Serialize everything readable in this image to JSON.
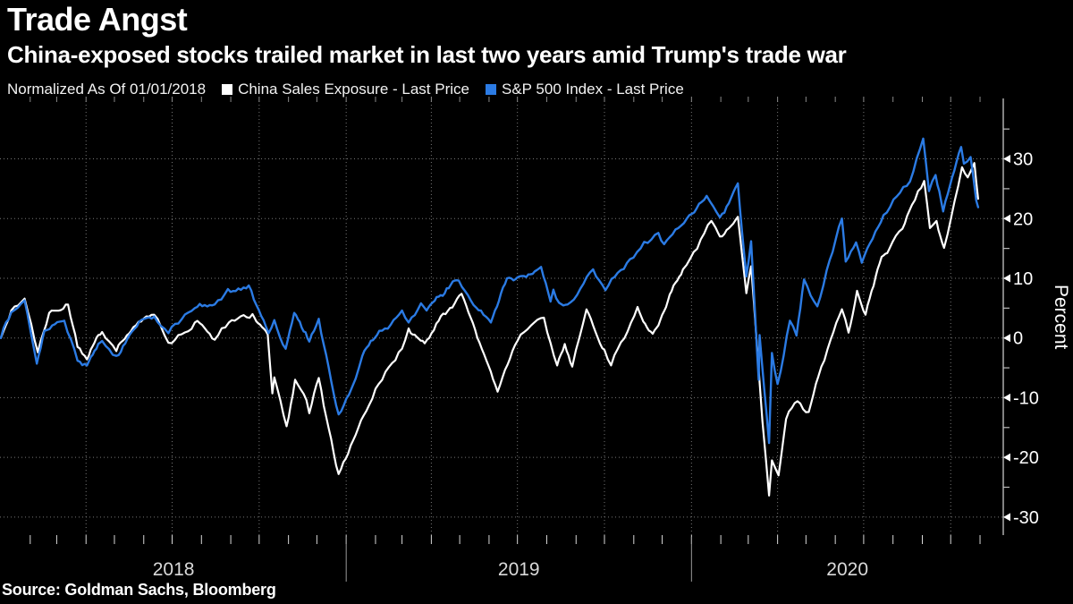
{
  "header": {
    "title": "Trade Angst",
    "subtitle": "China-exposed stocks trailed market in last two years amid Trump's trade war"
  },
  "legend": {
    "normalized_label": "Normalized As Of 01/01/2018",
    "items": [
      {
        "label": "China Sales Exposure - Last Price",
        "color": "#ffffff"
      },
      {
        "label": "S&P 500 Index - Last Price",
        "color": "#2b7be4"
      }
    ]
  },
  "source": "Source: Goldman Sachs, Bloomberg",
  "colors": {
    "background": "#000000",
    "axis_line": "#c8c8c8",
    "grid_dots": "#777777",
    "tick_minor": "#bbbbbb",
    "tick_month_top": "#8a8a8a",
    "tick_month_bottom": "#d8d8d8",
    "year_divider": "#9a9a9a",
    "year_label": "#d9d9d9",
    "ytick_label": "#ffffff",
    "white_series": "#ffffff",
    "blue_series": "#2b7be4"
  },
  "chart_data": {
    "type": "line",
    "title": "Trade Angst",
    "subtitle": "China-exposed stocks trailed market in last two years amid Trump's trade war",
    "xlabel": "",
    "ylabel": "Percent",
    "ylim": [
      -35,
      35
    ],
    "yticks": [
      30,
      20,
      10,
      0,
      -10,
      -20,
      -30
    ],
    "ytick_minor_step": 5,
    "x_range": [
      "2018-01-01",
      "2020-10-30"
    ],
    "x_year_labels": [
      "2018",
      "2019",
      "2020"
    ],
    "grid": "dotted horizontal lines every 10 percent; dotted vertical lines at quarter starts; monthly tick marks top and bottom; year divider lines below axis",
    "legend_position": "top",
    "normalized_as_of": "01/01/2018",
    "series": [
      {
        "name": "China Sales Exposure - Last Price",
        "color": "#ffffff",
        "points": [
          [
            "2018-01-01",
            0
          ],
          [
            "2018-01-12",
            4.6
          ],
          [
            "2018-01-26",
            6.6
          ],
          [
            "2018-02-09",
            -2.4
          ],
          [
            "2018-02-21",
            4.2
          ],
          [
            "2018-03-13",
            5.6
          ],
          [
            "2018-03-23",
            -1.5
          ],
          [
            "2018-04-02",
            -3.6
          ],
          [
            "2018-04-18",
            1.0
          ],
          [
            "2018-05-03",
            -2.2
          ],
          [
            "2018-05-21",
            1.8
          ],
          [
            "2018-06-12",
            3.9
          ],
          [
            "2018-06-27",
            -0.8
          ],
          [
            "2018-07-25",
            2.6
          ],
          [
            "2018-08-15",
            -0.3
          ],
          [
            "2018-08-30",
            2.6
          ],
          [
            "2018-09-24",
            4.0
          ],
          [
            "2018-10-10",
            0.6
          ],
          [
            "2018-10-15",
            -9.3
          ],
          [
            "2018-10-17",
            -6.6
          ],
          [
            "2018-10-30",
            -14.8
          ],
          [
            "2018-11-08",
            -7.0
          ],
          [
            "2018-11-20",
            -10.4
          ],
          [
            "2018-11-23",
            -12.6
          ],
          [
            "2018-12-03",
            -6.7
          ],
          [
            "2018-12-24",
            -22.8
          ],
          [
            "2019-01-03",
            -19.4
          ],
          [
            "2019-01-25",
            -11.3
          ],
          [
            "2019-02-01",
            -8.5
          ],
          [
            "2019-03-01",
            -1.8
          ],
          [
            "2019-03-08",
            1.6
          ],
          [
            "2019-03-25",
            -0.9
          ],
          [
            "2019-05-03",
            7.4
          ],
          [
            "2019-05-22",
            -0.8
          ],
          [
            "2019-06-10",
            -9.0
          ],
          [
            "2019-07-01",
            -0.5
          ],
          [
            "2019-07-29",
            3.4
          ],
          [
            "2019-08-12",
            -4.6
          ],
          [
            "2019-08-20",
            -1.0
          ],
          [
            "2019-08-28",
            -4.8
          ],
          [
            "2019-09-12",
            4.8
          ],
          [
            "2019-10-01",
            -2.0
          ],
          [
            "2019-10-08",
            -4.6
          ],
          [
            "2019-11-05",
            5.2
          ],
          [
            "2019-11-21",
            0.7
          ],
          [
            "2019-12-23",
            11.5
          ],
          [
            "2020-01-22",
            19.6
          ],
          [
            "2020-01-31",
            17.0
          ],
          [
            "2020-02-19",
            20.3
          ],
          [
            "2020-02-28",
            7.5
          ],
          [
            "2020-03-04",
            12.0
          ],
          [
            "2020-03-16",
            -14.0
          ],
          [
            "2020-03-23",
            -26.4
          ],
          [
            "2020-03-26",
            -20.5
          ],
          [
            "2020-04-02",
            -23.0
          ],
          [
            "2020-04-10",
            -13.6
          ],
          [
            "2020-04-22",
            -10.6
          ],
          [
            "2020-05-04",
            -12.4
          ],
          [
            "2020-05-14",
            -6.5
          ],
          [
            "2020-05-27",
            -0.3
          ],
          [
            "2020-06-08",
            4.8
          ],
          [
            "2020-06-15",
            0.9
          ],
          [
            "2020-06-24",
            7.9
          ],
          [
            "2020-07-03",
            3.9
          ],
          [
            "2020-07-20",
            13.6
          ],
          [
            "2020-07-28",
            14.9
          ],
          [
            "2020-08-11",
            18.3
          ],
          [
            "2020-08-21",
            22.3
          ],
          [
            "2020-09-03",
            26.3
          ],
          [
            "2020-09-09",
            18.4
          ],
          [
            "2020-09-16",
            19.6
          ],
          [
            "2020-09-24",
            15.1
          ],
          [
            "2020-10-09",
            25.5
          ],
          [
            "2020-10-13",
            28.6
          ],
          [
            "2020-10-19",
            26.9
          ],
          [
            "2020-10-26",
            29.3
          ],
          [
            "2020-10-30",
            23.3
          ]
        ]
      },
      {
        "name": "S&P 500 Index - Last Price",
        "color": "#2b7be4",
        "points": [
          [
            "2018-01-01",
            0
          ],
          [
            "2018-01-12",
            4.3
          ],
          [
            "2018-01-26",
            6.3
          ],
          [
            "2018-02-08",
            -4.3
          ],
          [
            "2018-02-16",
            1.2
          ],
          [
            "2018-02-27",
            2.3
          ],
          [
            "2018-03-09",
            2.9
          ],
          [
            "2018-03-23",
            -3.8
          ],
          [
            "2018-04-02",
            -4.6
          ],
          [
            "2018-04-18",
            -0.5
          ],
          [
            "2018-05-03",
            -3.0
          ],
          [
            "2018-05-22",
            1.5
          ],
          [
            "2018-06-12",
            3.6
          ],
          [
            "2018-06-27",
            0.8
          ],
          [
            "2018-07-25",
            5.0
          ],
          [
            "2018-08-15",
            5.6
          ],
          [
            "2018-08-29",
            8.2
          ],
          [
            "2018-09-20",
            8.8
          ],
          [
            "2018-10-11",
            0.8
          ],
          [
            "2018-10-17",
            3.0
          ],
          [
            "2018-10-29",
            -1.8
          ],
          [
            "2018-11-07",
            4.2
          ],
          [
            "2018-11-23",
            -0.6
          ],
          [
            "2018-12-03",
            3.2
          ],
          [
            "2018-12-24",
            -12.8
          ],
          [
            "2019-01-04",
            -9.5
          ],
          [
            "2019-01-18",
            -3.0
          ],
          [
            "2019-02-05",
            1.2
          ],
          [
            "2019-03-01",
            4.6
          ],
          [
            "2019-03-08",
            2.6
          ],
          [
            "2019-03-21",
            5.8
          ],
          [
            "2019-03-27",
            4.6
          ],
          [
            "2019-04-30",
            9.6
          ],
          [
            "2019-05-13",
            6.2
          ],
          [
            "2019-06-03",
            2.6
          ],
          [
            "2019-06-20",
            10.0
          ],
          [
            "2019-07-26",
            11.9
          ],
          [
            "2019-08-05",
            6.1
          ],
          [
            "2019-08-08",
            8.1
          ],
          [
            "2019-08-14",
            5.9
          ],
          [
            "2019-08-23",
            5.6
          ],
          [
            "2019-09-19",
            11.5
          ],
          [
            "2019-10-02",
            8.0
          ],
          [
            "2019-10-28",
            13.2
          ],
          [
            "2019-11-27",
            17.6
          ],
          [
            "2019-12-03",
            15.7
          ],
          [
            "2019-12-27",
            20.0
          ],
          [
            "2020-01-17",
            23.8
          ],
          [
            "2020-01-31",
            20.2
          ],
          [
            "2020-02-19",
            25.9
          ],
          [
            "2020-02-28",
            10.3
          ],
          [
            "2020-03-04",
            16.2
          ],
          [
            "2020-03-12",
            -7.0
          ],
          [
            "2020-03-13",
            0.5
          ],
          [
            "2020-03-23",
            -17.6
          ],
          [
            "2020-03-26",
            -2.5
          ],
          [
            "2020-04-01",
            -7.7
          ],
          [
            "2020-04-14",
            2.9
          ],
          [
            "2020-04-21",
            0.4
          ],
          [
            "2020-04-29",
            9.8
          ],
          [
            "2020-05-13",
            5.3
          ],
          [
            "2020-06-08",
            20.0
          ],
          [
            "2020-06-12",
            12.8
          ],
          [
            "2020-06-23",
            16.0
          ],
          [
            "2020-06-29",
            12.6
          ],
          [
            "2020-07-22",
            20.6
          ],
          [
            "2020-08-19",
            26.2
          ],
          [
            "2020-09-02",
            33.4
          ],
          [
            "2020-09-08",
            24.6
          ],
          [
            "2020-09-15",
            27.3
          ],
          [
            "2020-09-23",
            21.2
          ],
          [
            "2020-10-12",
            32.0
          ],
          [
            "2020-10-15",
            29.2
          ],
          [
            "2020-10-22",
            30.3
          ],
          [
            "2020-10-28",
            23.0
          ],
          [
            "2020-10-30",
            21.9
          ]
        ]
      }
    ]
  }
}
